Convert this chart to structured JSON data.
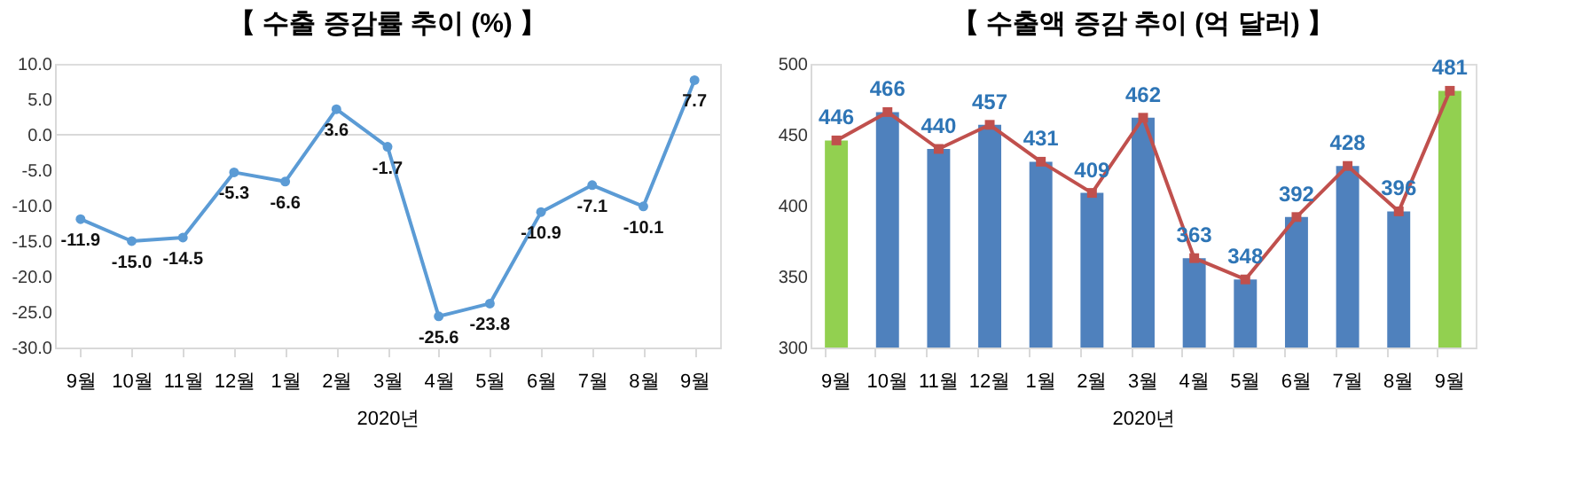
{
  "chart_data": [
    {
      "type": "line",
      "title": "【 수출 증감률 추이 (%) 】",
      "xlabel": "2020년",
      "categories": [
        "9월",
        "10월",
        "11월",
        "12월",
        "1월",
        "2월",
        "3월",
        "4월",
        "5월",
        "6월",
        "7월",
        "8월",
        "9월"
      ],
      "series": [
        {
          "color": "#5b9bd5",
          "values": [
            -11.9,
            -15.0,
            -14.5,
            -5.3,
            -6.6,
            3.6,
            -1.7,
            -25.6,
            -23.8,
            -10.9,
            -7.1,
            -10.1,
            7.7
          ],
          "value_labels": [
            "-11.9",
            "-15.0",
            "-14.5",
            "-5.3",
            "-6.6",
            "3.6",
            "-1.7",
            "-25.6",
            "-23.8",
            "-10.9",
            "-7.1",
            "-10.1",
            "7.7"
          ]
        }
      ],
      "ylim": [
        -30,
        10
      ],
      "yticks": [
        {
          "value": -30,
          "label": "-30.0"
        },
        {
          "value": -25,
          "label": "-25.0"
        },
        {
          "value": -20,
          "label": "-20.0"
        },
        {
          "value": -15,
          "label": "-15.0"
        },
        {
          "value": -10,
          "label": "-10.0"
        },
        {
          "value": -5,
          "label": "-5.0"
        },
        {
          "value": 0,
          "label": "0.0"
        },
        {
          "value": 5,
          "label": "5.0"
        },
        {
          "value": 10,
          "label": "10.0"
        }
      ],
      "ref_lines": [
        {
          "axis": "y",
          "value": 0,
          "color": "#d9d9d9"
        }
      ],
      "marker": "circle",
      "grid": false
    },
    {
      "type": "bar",
      "title": "【 수출액 증감 추이 (억 달러) 】",
      "xlabel": "2020년",
      "categories": [
        "9월",
        "10월",
        "11월",
        "12월",
        "1월",
        "2월",
        "3월",
        "4월",
        "5월",
        "6월",
        "7월",
        "8월",
        "9월"
      ],
      "series": [
        {
          "type": "bar",
          "colors": [
            "#92d050",
            "#4f81bd",
            "#4f81bd",
            "#4f81bd",
            "#4f81bd",
            "#4f81bd",
            "#4f81bd",
            "#4f81bd",
            "#4f81bd",
            "#4f81bd",
            "#4f81bd",
            "#4f81bd",
            "#92d050"
          ],
          "values": [
            446,
            466,
            440,
            457,
            431,
            409,
            462,
            363,
            348,
            392,
            428,
            396,
            481
          ]
        },
        {
          "type": "line",
          "color": "#c0504d",
          "marker": "square",
          "values": [
            446,
            466,
            440,
            457,
            431,
            409,
            462,
            363,
            348,
            392,
            428,
            396,
            481
          ],
          "value_labels": [
            "446",
            "466",
            "440",
            "457",
            "431",
            "409",
            "462",
            "363",
            "348",
            "392",
            "428",
            "396",
            "481"
          ]
        }
      ],
      "ylim": [
        300,
        500
      ],
      "yticks": [
        300,
        350,
        400,
        450,
        500
      ],
      "grid": false
    }
  ]
}
